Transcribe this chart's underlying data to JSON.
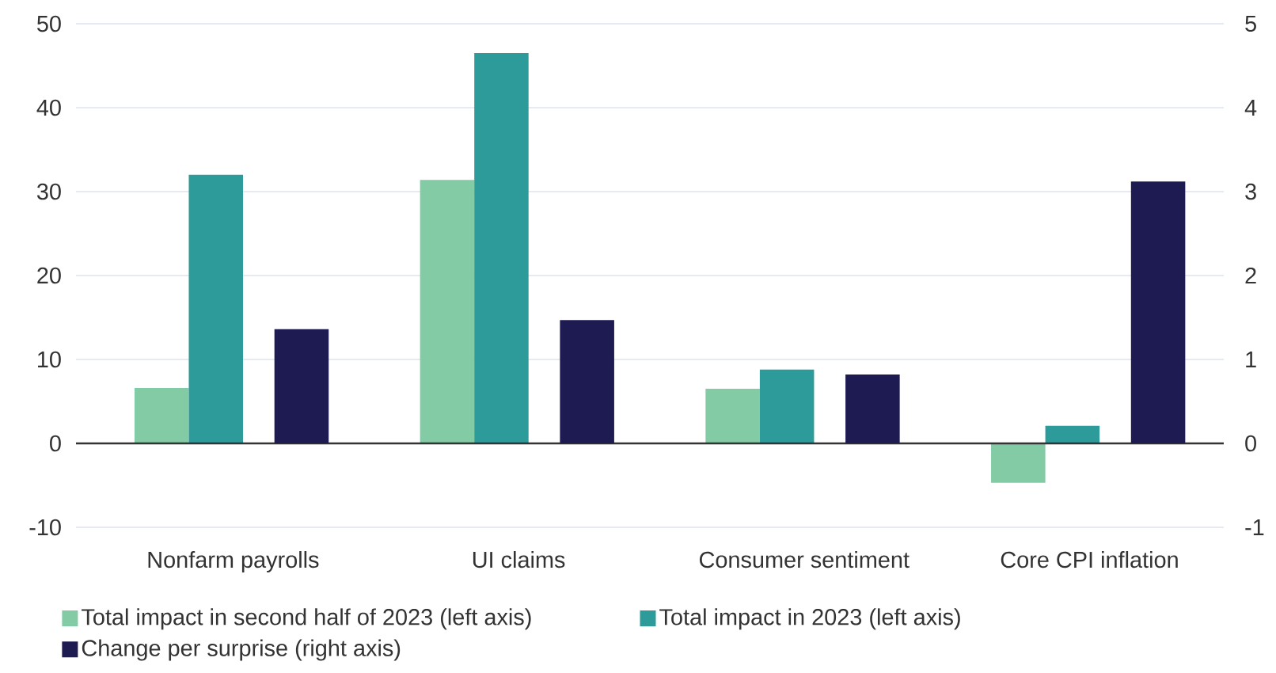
{
  "chart_data": {
    "type": "bar",
    "categories": [
      "Nonfarm payrolls",
      "UI claims",
      "Consumer sentiment",
      "Core CPI inflation"
    ],
    "series": [
      {
        "name": "Total impact in second half of 2023 (left axis)",
        "color": "#82cba5",
        "values": [
          6.6,
          31.4,
          6.5,
          -4.7
        ]
      },
      {
        "name": "Total impact in 2023 (left axis)",
        "color": "#2e9b9b",
        "values": [
          32,
          46.5,
          8.8,
          2.1
        ]
      },
      {
        "name": "Change per surprise (right axis)",
        "color": "#1e1b52",
        "axis": "y2",
        "values": [
          1.36,
          1.47,
          0.82,
          3.12
        ]
      }
    ],
    "ylim": [
      -10,
      50
    ],
    "yticks": [
      -10,
      0,
      10,
      20,
      30,
      40,
      50
    ],
    "y2lim": [
      -1,
      5
    ],
    "y2ticks": [
      -1,
      0,
      1,
      2,
      3,
      4,
      5
    ],
    "grid": "y",
    "legend": "bottom"
  }
}
